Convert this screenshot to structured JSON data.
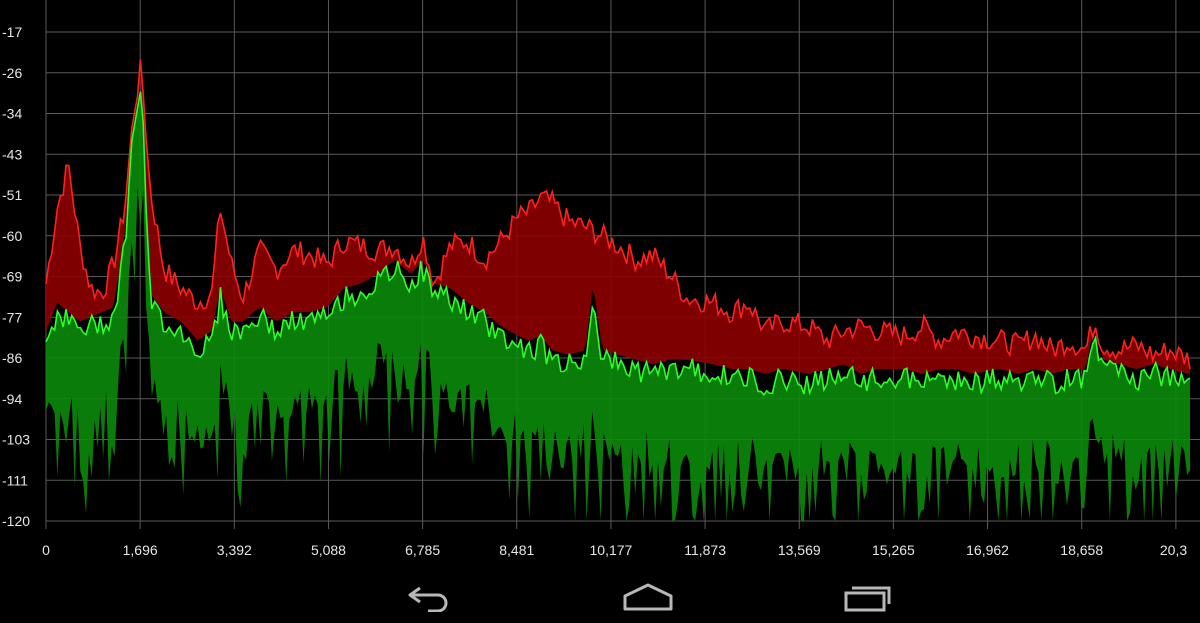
{
  "chart_data": {
    "type": "area",
    "xlabel": "",
    "ylabel": "",
    "x_ticks": [
      "0",
      "1,696",
      "3,392",
      "5,088",
      "6,785",
      "8,481",
      "10,177",
      "11,873",
      "13,569",
      "15,265",
      "16,962",
      "18,658",
      "20,3"
    ],
    "y_ticks": [
      "-17",
      "-26",
      "-34",
      "-43",
      "-51",
      "-60",
      "-69",
      "-77",
      "-86",
      "-94",
      "-103",
      "-111",
      "-120"
    ],
    "xlim": [
      0,
      20354
    ],
    "ylim": [
      -120,
      -17
    ],
    "grid": true,
    "colors": {
      "background": "#000000",
      "grid": "#5a5a5a",
      "peak_fill": "#8c0000",
      "peak_line": "#ff2020",
      "current_fill": "#0a8a0a",
      "current_line": "#2cff2c"
    },
    "series": [
      {
        "role": "peak",
        "x": [
          0,
          200,
          400,
          600,
          800,
          1000,
          1200,
          1400,
          1560,
          1696,
          1850,
          2100,
          2400,
          2700,
          2950,
          3100,
          3300,
          3500,
          3800,
          4100,
          4400,
          4700,
          5000,
          5300,
          5600,
          5900,
          6200,
          6500,
          6700,
          6900,
          7200,
          7500,
          7800,
          8100,
          8400,
          8600,
          8800,
          9000,
          9300,
          9600,
          9900,
          10177,
          10500,
          10800,
          11100,
          11400,
          11873,
          12200,
          12500,
          12800,
          13100,
          13569,
          13900,
          14200,
          14500,
          14800,
          15265,
          15600,
          15900,
          16200,
          16500,
          16962,
          17300,
          17600,
          17900,
          18200,
          18500,
          18658,
          18800,
          19100,
          19400,
          19700,
          20000,
          20354
        ],
        "y": [
          -70,
          -54,
          -45,
          -62,
          -71,
          -72,
          -66,
          -54,
          -34,
          -24,
          -50,
          -67,
          -71,
          -74,
          -72,
          -54,
          -66,
          -73,
          -63,
          -67,
          -63,
          -64,
          -66,
          -61,
          -62,
          -63,
          -62,
          -66,
          -60,
          -70,
          -62,
          -61,
          -65,
          -61,
          -56,
          -55,
          -52,
          -53,
          -57,
          -58,
          -60,
          -62,
          -65,
          -64,
          -68,
          -73,
          -74,
          -76,
          -74,
          -80,
          -78,
          -79,
          -82,
          -80,
          -79,
          -80,
          -81,
          -79,
          -82,
          -80,
          -81,
          -82,
          -83,
          -81,
          -84,
          -82,
          -84,
          -78,
          -83,
          -84,
          -83,
          -85,
          -84,
          -86
        ]
      },
      {
        "role": "current",
        "x": [
          0,
          200,
          400,
          600,
          800,
          1000,
          1200,
          1400,
          1560,
          1696,
          1850,
          2100,
          2400,
          2700,
          2950,
          3100,
          3300,
          3500,
          3800,
          4100,
          4400,
          4700,
          5000,
          5300,
          5600,
          5900,
          6200,
          6500,
          6700,
          6900,
          7200,
          7500,
          7800,
          8100,
          8400,
          8600,
          8800,
          9000,
          9300,
          9600,
          9731,
          9900,
          10177,
          10500,
          10800,
          11100,
          11400,
          11873,
          12200,
          12500,
          12800,
          13100,
          13569,
          13900,
          14200,
          14500,
          14800,
          15265,
          15600,
          15900,
          16200,
          16500,
          16962,
          17300,
          17600,
          17900,
          18200,
          18500,
          18658,
          18800,
          19100,
          19400,
          19700,
          20000,
          20354
        ],
        "y": [
          -82,
          -76,
          -78,
          -80,
          -79,
          -78,
          -77,
          -62,
          -36,
          -28,
          -74,
          -78,
          -80,
          -84,
          -82,
          -73,
          -80,
          -80,
          -77,
          -80,
          -78,
          -78,
          -77,
          -73,
          -72,
          -70,
          -67,
          -70,
          -67,
          -72,
          -73,
          -76,
          -78,
          -81,
          -83,
          -84,
          -83,
          -86,
          -87,
          -86,
          -72,
          -86,
          -87,
          -88,
          -89,
          -88,
          -88,
          -89,
          -90,
          -90,
          -91,
          -90,
          -91,
          -90,
          -89,
          -91,
          -90,
          -90,
          -91,
          -90,
          -90,
          -91,
          -90,
          -91,
          -90,
          -91,
          -90,
          -90,
          -80,
          -88,
          -89,
          -90,
          -89,
          -90,
          -91
        ]
      }
    ]
  },
  "navbar": {
    "back_icon": "back-arrow-icon",
    "home_icon": "home-icon",
    "recents_icon": "recents-icon"
  }
}
